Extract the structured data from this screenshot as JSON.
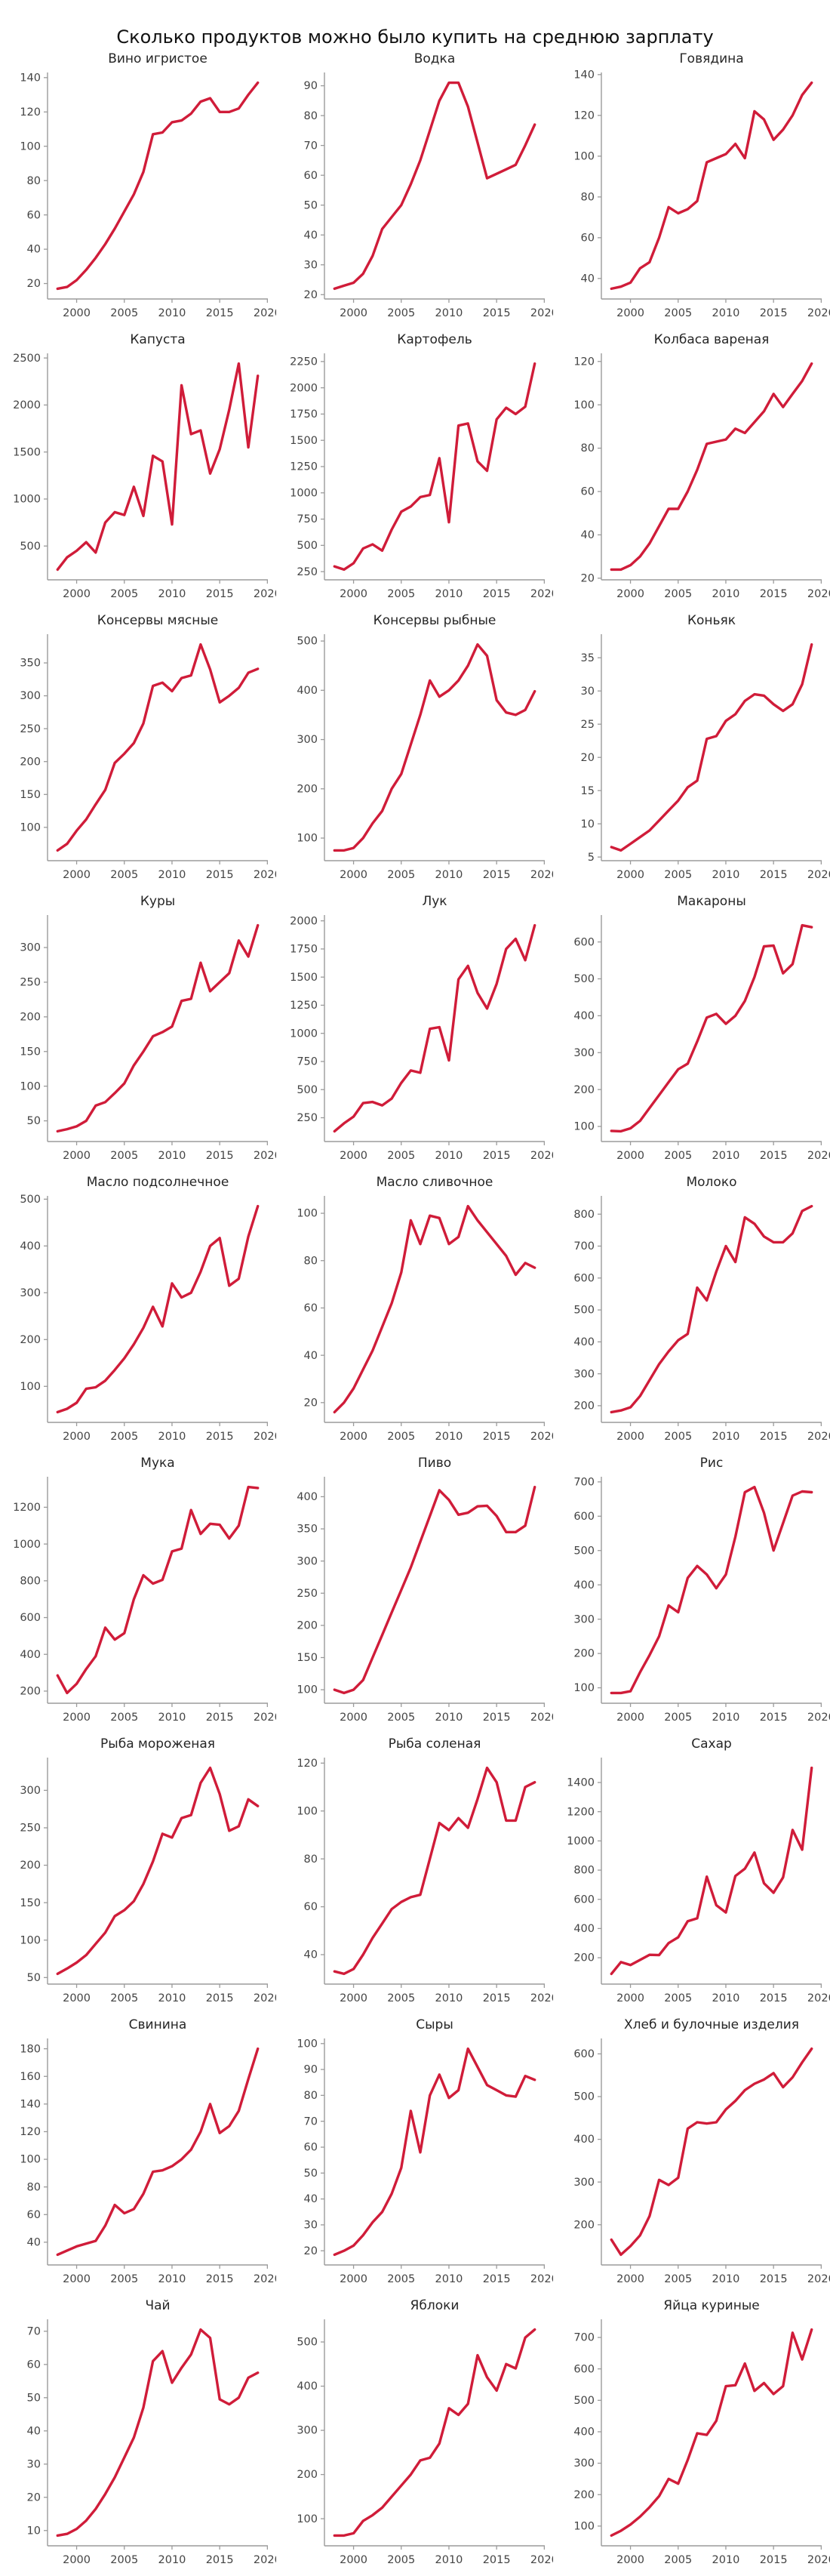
{
  "title": "Сколько продуктов можно было купить на среднюю зарплату",
  "colors": {
    "line": "#d01c39",
    "axis": "#9b9b9b",
    "tick_text": "#444444",
    "chart_title_text": "#262626",
    "page_title_text": "#111111"
  },
  "x": {
    "years": [
      1998,
      1999,
      2000,
      2001,
      2002,
      2003,
      2004,
      2005,
      2006,
      2007,
      2008,
      2009,
      2010,
      2011,
      2012,
      2013,
      2014,
      2015,
      2016,
      2017,
      2018,
      2019
    ],
    "ticks": [
      2000,
      2005,
      2010,
      2015,
      2020
    ]
  },
  "chart_data": [
    {
      "type": "line",
      "title": "Вино игристое",
      "yticks": [
        20,
        40,
        60,
        80,
        100,
        120,
        140
      ],
      "values": [
        17,
        18,
        22,
        28,
        35,
        43,
        52,
        62,
        72,
        85,
        107,
        108,
        114,
        115,
        119,
        126,
        128,
        120,
        120,
        122,
        130,
        137
      ]
    },
    {
      "type": "line",
      "title": "Водка",
      "yticks": [
        20,
        30,
        40,
        50,
        60,
        70,
        80,
        90
      ],
      "values": [
        22,
        23,
        24,
        27,
        33,
        42,
        46,
        50,
        57,
        65,
        75,
        85,
        91,
        91,
        83,
        71,
        59,
        60.5,
        62,
        63.5,
        70,
        77
      ]
    },
    {
      "type": "line",
      "title": "Говядина",
      "yticks": [
        40,
        60,
        80,
        100,
        120,
        140
      ],
      "values": [
        35,
        36,
        38,
        45,
        48,
        60,
        75,
        72,
        74,
        78,
        97,
        99,
        101,
        106,
        99,
        122,
        118,
        108,
        113,
        120,
        130,
        136
      ]
    },
    {
      "type": "line",
      "title": "Капуста",
      "yticks": [
        500,
        1000,
        1500,
        2000,
        2500
      ],
      "values": [
        250,
        380,
        450,
        540,
        430,
        750,
        860,
        830,
        1130,
        820,
        1460,
        1400,
        730,
        2210,
        1690,
        1730,
        1270,
        1530,
        1950,
        2440,
        1550,
        2310
      ]
    },
    {
      "type": "line",
      "title": "Картофель",
      "yticks": [
        250,
        500,
        750,
        1000,
        1250,
        1500,
        1750,
        2000,
        2250
      ],
      "values": [
        300,
        270,
        330,
        470,
        510,
        450,
        650,
        820,
        870,
        960,
        980,
        1330,
        720,
        1640,
        1660,
        1300,
        1210,
        1700,
        1810,
        1750,
        1820,
        2230
      ]
    },
    {
      "type": "line",
      "title": "Колбаса вареная",
      "yticks": [
        20,
        40,
        60,
        80,
        100,
        120
      ],
      "values": [
        24,
        24,
        26,
        30,
        36,
        44,
        52,
        52,
        60,
        70,
        82,
        83,
        84,
        89,
        87,
        92,
        97,
        105,
        99,
        105,
        111,
        119
      ]
    },
    {
      "type": "line",
      "title": "Консервы мясные",
      "yticks": [
        100,
        150,
        200,
        250,
        300,
        350
      ],
      "values": [
        65,
        75,
        95,
        112,
        135,
        157,
        198,
        212,
        228,
        258,
        315,
        320,
        307,
        327,
        331,
        378,
        340,
        290,
        300,
        312,
        335,
        341
      ]
    },
    {
      "type": "line",
      "title": "Консервы рыбные",
      "yticks": [
        100,
        200,
        300,
        400,
        500
      ],
      "values": [
        75,
        75,
        80,
        100,
        130,
        155,
        200,
        230,
        290,
        350,
        420,
        387,
        400,
        420,
        450,
        493,
        470,
        380,
        355,
        350,
        360,
        398
      ]
    },
    {
      "type": "line",
      "title": "Коньяк",
      "yticks": [
        5,
        10,
        15,
        20,
        25,
        30,
        35
      ],
      "values": [
        6.5,
        6,
        7,
        8,
        9,
        10.5,
        12,
        13.5,
        15.5,
        16.5,
        22.8,
        23.2,
        25.5,
        26.5,
        28.5,
        29.5,
        29.3,
        28,
        27,
        28,
        31,
        37
      ]
    },
    {
      "type": "line",
      "title": "Куры",
      "yticks": [
        50,
        100,
        150,
        200,
        250,
        300
      ],
      "values": [
        35,
        38,
        42,
        50,
        72,
        77,
        90,
        104,
        130,
        150,
        172,
        178,
        186,
        223,
        226,
        278,
        237,
        250,
        263,
        310,
        287,
        332
      ]
    },
    {
      "type": "line",
      "title": "Лук",
      "yticks": [
        250,
        500,
        750,
        1000,
        1250,
        1500,
        1750,
        2000
      ],
      "values": [
        130,
        200,
        260,
        380,
        390,
        360,
        420,
        560,
        670,
        650,
        1040,
        1055,
        760,
        1480,
        1600,
        1360,
        1220,
        1440,
        1750,
        1840,
        1650,
        1960
      ]
    },
    {
      "type": "line",
      "title": "Макароны",
      "yticks": [
        100,
        200,
        300,
        400,
        500,
        600
      ],
      "values": [
        88,
        87,
        95,
        115,
        150,
        185,
        220,
        255,
        270,
        330,
        395,
        405,
        378,
        400,
        440,
        505,
        588,
        590,
        515,
        540,
        645,
        640
      ]
    },
    {
      "type": "line",
      "title": "Масло подсолнечное",
      "yticks": [
        100,
        200,
        300,
        400,
        500
      ],
      "values": [
        45,
        52,
        65,
        95,
        98,
        112,
        135,
        160,
        190,
        225,
        270,
        228,
        320,
        290,
        300,
        345,
        400,
        417,
        315,
        330,
        420,
        485
      ]
    },
    {
      "type": "line",
      "title": "Масло сливочное",
      "yticks": [
        20,
        40,
        60,
        80,
        100
      ],
      "values": [
        16,
        20,
        26,
        34,
        42,
        52,
        62,
        75,
        97,
        87,
        99,
        98,
        87,
        90,
        103,
        97,
        92,
        87,
        82,
        74,
        79,
        77
      ]
    },
    {
      "type": "line",
      "title": "Молоко",
      "yticks": [
        200,
        300,
        400,
        500,
        600,
        700,
        800
      ],
      "values": [
        180,
        185,
        195,
        230,
        280,
        330,
        370,
        405,
        425,
        570,
        530,
        620,
        700,
        650,
        790,
        770,
        730,
        712,
        712,
        740,
        810,
        825
      ]
    },
    {
      "type": "line",
      "title": "Мука",
      "yticks": [
        200,
        400,
        600,
        800,
        1000,
        1200
      ],
      "values": [
        285,
        190,
        240,
        320,
        390,
        545,
        480,
        515,
        700,
        830,
        785,
        805,
        960,
        975,
        1185,
        1055,
        1110,
        1105,
        1030,
        1100,
        1310,
        1305
      ]
    },
    {
      "type": "line",
      "title": "Пиво",
      "yticks": [
        100,
        150,
        200,
        250,
        300,
        350,
        400
      ],
      "values": [
        100,
        95,
        100,
        115,
        150,
        185,
        220,
        255,
        290,
        330,
        370,
        410,
        395,
        372,
        375,
        385,
        386,
        370,
        345,
        345,
        355,
        415
      ]
    },
    {
      "type": "line",
      "title": "Рис",
      "yticks": [
        100,
        200,
        300,
        400,
        500,
        600,
        700
      ],
      "values": [
        85,
        85,
        90,
        145,
        195,
        250,
        340,
        320,
        420,
        455,
        430,
        390,
        430,
        540,
        670,
        685,
        610,
        500,
        580,
        660,
        672,
        670
      ]
    },
    {
      "type": "line",
      "title": "Рыба мороженая",
      "yticks": [
        50,
        100,
        150,
        200,
        250,
        300
      ],
      "values": [
        55,
        62,
        70,
        80,
        95,
        110,
        132,
        140,
        152,
        175,
        205,
        242,
        237,
        263,
        267,
        310,
        330,
        295,
        246,
        252,
        288,
        279
      ]
    },
    {
      "type": "line",
      "title": "Рыба соленая",
      "yticks": [
        40,
        60,
        80,
        100,
        120
      ],
      "values": [
        33,
        32,
        34,
        40,
        47,
        53,
        59,
        62,
        64,
        65,
        80,
        95,
        92,
        97,
        93,
        105,
        118,
        112,
        96,
        96,
        110,
        112
      ]
    },
    {
      "type": "line",
      "title": "Сахар",
      "yticks": [
        200,
        400,
        600,
        800,
        1000,
        1200,
        1400
      ],
      "values": [
        90,
        170,
        150,
        185,
        220,
        218,
        300,
        340,
        450,
        470,
        755,
        560,
        510,
        760,
        810,
        920,
        710,
        645,
        750,
        1075,
        940,
        1500
      ]
    },
    {
      "type": "line",
      "title": "Свинина",
      "yticks": [
        40,
        60,
        80,
        100,
        120,
        140,
        160,
        180
      ],
      "values": [
        31,
        34,
        37,
        39,
        41,
        52,
        67,
        61,
        64,
        75,
        91,
        92,
        95,
        100,
        107,
        120,
        140,
        119,
        124,
        135,
        158,
        180
      ]
    },
    {
      "type": "line",
      "title": "Сыры",
      "yticks": [
        20,
        30,
        40,
        50,
        60,
        70,
        80,
        90,
        100
      ],
      "values": [
        18.5,
        20,
        22,
        26,
        31,
        35,
        42,
        52,
        74,
        58,
        80,
        88,
        79,
        82,
        98,
        91,
        84,
        82,
        80,
        79.5,
        87.5,
        86
      ]
    },
    {
      "type": "line",
      "title": "Хлеб и булочные изделия",
      "yticks": [
        200,
        300,
        400,
        500,
        600
      ],
      "values": [
        165,
        130,
        150,
        175,
        220,
        305,
        293,
        310,
        425,
        440,
        437,
        440,
        470,
        490,
        515,
        530,
        540,
        555,
        522,
        545,
        580,
        612
      ]
    },
    {
      "type": "line",
      "title": "Чай",
      "yticks": [
        10,
        20,
        30,
        40,
        50,
        60,
        70
      ],
      "values": [
        8.5,
        9,
        10.5,
        13,
        16.5,
        21,
        26,
        32,
        38,
        47,
        61,
        64,
        54.5,
        59,
        63,
        70.5,
        68,
        49.5,
        48,
        50,
        56,
        57.5
      ]
    },
    {
      "type": "line",
      "title": "Яблоки",
      "yticks": [
        100,
        200,
        300,
        400,
        500
      ],
      "values": [
        62,
        62,
        67,
        95,
        108,
        125,
        150,
        175,
        200,
        232,
        238,
        270,
        350,
        335,
        360,
        470,
        420,
        390,
        450,
        440,
        510,
        528
      ]
    },
    {
      "type": "line",
      "title": "Яйца куриные",
      "yticks": [
        100,
        200,
        300,
        400,
        500,
        600,
        700
      ],
      "values": [
        70,
        85,
        105,
        130,
        160,
        195,
        250,
        235,
        310,
        395,
        390,
        435,
        545,
        548,
        617,
        530,
        555,
        520,
        545,
        715,
        630,
        725
      ]
    }
  ]
}
